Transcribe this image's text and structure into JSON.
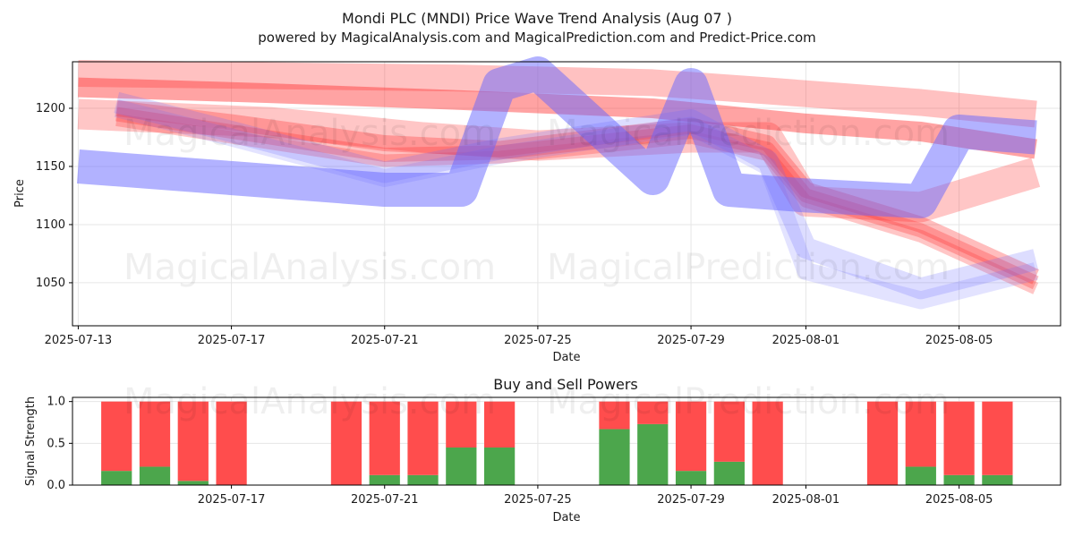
{
  "title": "Mondi PLC (MNDI) Price Wave Trend Analysis (Aug 07 )",
  "subtitle": "powered by MagicalAnalysis.com and MagicalPrediction.com and Predict-Price.com",
  "watermarks": [
    "MagicalAnalysis.com",
    "MagicalPrediction.com"
  ],
  "colors": {
    "buy": "#4ca64c",
    "sell": "#ff4d4d",
    "wave_red": "#ff3333",
    "wave_blue": "#6666ff"
  },
  "chart_data": [
    {
      "type": "area",
      "title": "",
      "xlabel": "Date",
      "ylabel": "Price",
      "x_ticks": [
        "2025-07-13",
        "2025-07-17",
        "2025-07-21",
        "2025-07-25",
        "2025-07-29",
        "2025-08-01",
        "2025-08-05"
      ],
      "y_ticks": [
        1050,
        1100,
        1150,
        1200
      ],
      "xlim": [
        "2025-07-13",
        "2025-08-08"
      ],
      "ylim": [
        1013,
        1240
      ],
      "grid": true,
      "series": [
        {
          "color": "red",
          "x": [
            "2025-07-13",
            "2025-07-18",
            "2025-07-23",
            "2025-07-28",
            "2025-08-01",
            "2025-08-04",
            "2025-08-07"
          ],
          "values": [
            1218,
            1213,
            1207,
            1200,
            1187,
            1180,
            1165
          ]
        },
        {
          "color": "red",
          "x": [
            "2025-07-13",
            "2025-07-18",
            "2025-07-23",
            "2025-07-28",
            "2025-07-31",
            "2025-08-04",
            "2025-08-07"
          ],
          "values": [
            1230,
            1228,
            1226,
            1222,
            1215,
            1205,
            1195
          ]
        },
        {
          "color": "red",
          "x": [
            "2025-07-13",
            "2025-07-18",
            "2025-07-22",
            "2025-07-25",
            "2025-07-29",
            "2025-07-31",
            "2025-08-01",
            "2025-08-04",
            "2025-08-07"
          ],
          "values": [
            1195,
            1188,
            1175,
            1168,
            1175,
            1175,
            1120,
            1115,
            1145
          ]
        },
        {
          "color": "red",
          "x": [
            "2025-07-14",
            "2025-07-17",
            "2025-07-21",
            "2025-07-24",
            "2025-07-29",
            "2025-07-31",
            "2025-08-01",
            "2025-08-04",
            "2025-08-07"
          ],
          "values": [
            1200,
            1188,
            1170,
            1165,
            1185,
            1170,
            1130,
            1100,
            1055
          ]
        },
        {
          "color": "red",
          "x": [
            "2025-07-14",
            "2025-07-17",
            "2025-07-21",
            "2025-07-24",
            "2025-07-29",
            "2025-07-31",
            "2025-08-01",
            "2025-08-04",
            "2025-08-07"
          ],
          "values": [
            1195,
            1180,
            1160,
            1162,
            1180,
            1165,
            1125,
            1095,
            1050
          ]
        },
        {
          "color": "red",
          "x": [
            "2025-07-14",
            "2025-07-17",
            "2025-07-21",
            "2025-07-24",
            "2025-07-29",
            "2025-07-31",
            "2025-08-01",
            "2025-08-04",
            "2025-08-07"
          ],
          "values": [
            1190,
            1175,
            1155,
            1158,
            1175,
            1160,
            1120,
            1090,
            1045
          ]
        },
        {
          "color": "blue",
          "x": [
            "2025-07-13",
            "2025-07-17",
            "2025-07-21",
            "2025-07-23",
            "2025-07-24",
            "2025-07-25",
            "2025-07-28",
            "2025-07-29",
            "2025-07-30",
            "2025-08-01",
            "2025-08-04",
            "2025-08-05",
            "2025-08-07"
          ],
          "values": [
            1150,
            1140,
            1130,
            1130,
            1220,
            1230,
            1140,
            1220,
            1130,
            1125,
            1120,
            1180,
            1175
          ]
        },
        {
          "color": "blue",
          "x": [
            "2025-07-14",
            "2025-07-17",
            "2025-07-21",
            "2025-07-24",
            "2025-07-29",
            "2025-07-31",
            "2025-08-01",
            "2025-08-04",
            "2025-08-07"
          ],
          "values": [
            1205,
            1180,
            1145,
            1165,
            1190,
            1155,
            1080,
            1045,
            1070
          ]
        },
        {
          "color": "blue",
          "x": [
            "2025-07-14",
            "2025-07-17",
            "2025-07-21",
            "2025-07-24",
            "2025-07-29",
            "2025-07-31",
            "2025-08-01",
            "2025-08-04",
            "2025-08-07"
          ],
          "values": [
            1200,
            1175,
            1140,
            1160,
            1185,
            1150,
            1060,
            1035,
            1060
          ]
        }
      ]
    },
    {
      "type": "bar",
      "title": "Buy and Sell Powers",
      "xlabel": "Date",
      "ylabel": "Signal Strength",
      "x_ticks": [
        "2025-07-17",
        "2025-07-21",
        "2025-07-25",
        "2025-07-29",
        "2025-08-01",
        "2025-08-05"
      ],
      "y_ticks": [
        0.0,
        0.5,
        1.0
      ],
      "ylim": [
        0,
        1.05
      ],
      "categories": [
        "2025-07-14",
        "2025-07-15",
        "2025-07-16",
        "2025-07-17",
        "2025-07-20",
        "2025-07-21",
        "2025-07-22",
        "2025-07-23",
        "2025-07-24",
        "2025-07-27",
        "2025-07-28",
        "2025-07-29",
        "2025-07-30",
        "2025-07-31",
        "2025-08-03",
        "2025-08-04",
        "2025-08-05",
        "2025-08-06"
      ],
      "series": [
        {
          "name": "Buy",
          "values": [
            0.17,
            0.22,
            0.05,
            0.0,
            0.0,
            0.12,
            0.12,
            0.45,
            0.45,
            0.67,
            0.73,
            0.17,
            0.28,
            0.0,
            0.0,
            0.22,
            0.12,
            0.12
          ]
        },
        {
          "name": "Sell",
          "values": [
            0.83,
            0.78,
            0.95,
            1.0,
            1.0,
            0.88,
            0.88,
            0.55,
            0.55,
            0.33,
            0.27,
            0.83,
            0.72,
            1.0,
            1.0,
            0.78,
            0.88,
            0.88
          ]
        }
      ]
    }
  ]
}
